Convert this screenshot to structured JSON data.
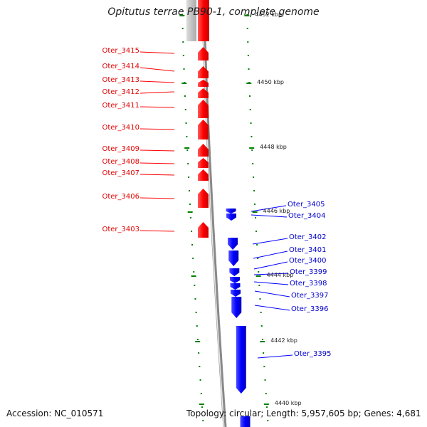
{
  "title": "Opitutus terrae PB90-1, complete genome",
  "footer": {
    "accession": "Accession: NC_010571",
    "topology": "Topology: circular; Length: 5,957,605 bp; Genes: 4,681"
  },
  "scale_labels": [
    "4452 kbp",
    "4450 kbp",
    "4448 kbp",
    "4446 kbp",
    "4444 kbp",
    "4442 kbp",
    "4440 kbp"
  ],
  "forward_genes": [
    "Oter_3415",
    "Oter_3414",
    "Oter_3413",
    "Oter_3412",
    "Oter_3411",
    "Oter_3410",
    "Oter_3409",
    "Oter_3408",
    "Oter_3407",
    "Oter_3406",
    "Oter_3403"
  ],
  "reverse_genes": [
    "Oter_3405",
    "Oter_3404",
    "Oter_3402",
    "Oter_3401",
    "Oter_3400",
    "Oter_3399",
    "Oter_3398",
    "Oter_3397",
    "Oter_3396",
    "Oter_3395"
  ],
  "colors": {
    "forward": "#ff0000",
    "reverse": "#0000ff",
    "ticks": "#008000",
    "backbone": "#999999"
  }
}
